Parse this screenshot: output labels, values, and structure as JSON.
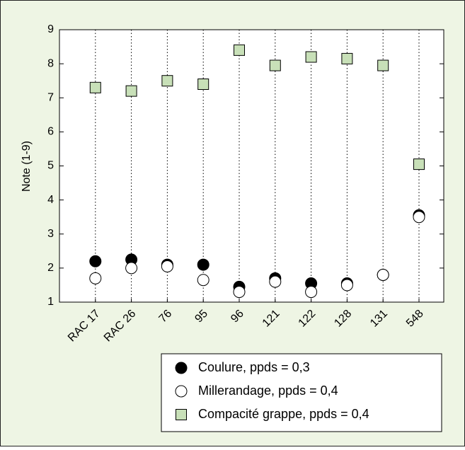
{
  "chart_data": {
    "type": "scatter",
    "y_label": "Note (1-9)",
    "categories": [
      "RAC 17",
      "RAC 26",
      "76",
      "95",
      "96",
      "121",
      "122",
      "128",
      "131",
      "548"
    ],
    "ylim": [
      1,
      9
    ],
    "yticks": [
      1,
      2,
      3,
      4,
      5,
      6,
      7,
      8,
      9
    ],
    "grid": true,
    "legend": "bottom-right",
    "series": [
      {
        "name": "Coulure, ppds = 0,3",
        "color": "#000000",
        "marker": "circle",
        "values": [
          2.2,
          2.25,
          2.1,
          2.1,
          1.45,
          1.7,
          1.55,
          1.55,
          1.8,
          3.55
        ]
      },
      {
        "name": "Millerandage, ppds = 0,4",
        "color": "#ffffff",
        "marker": "circle",
        "values": [
          1.7,
          2.0,
          2.05,
          1.65,
          1.3,
          1.6,
          1.3,
          1.5,
          1.8,
          3.5
        ]
      },
      {
        "name": "Compacité grappe, ppds = 0,4",
        "color": "#c8e0b8",
        "marker": "square",
        "values": [
          7.3,
          7.2,
          7.5,
          7.4,
          8.4,
          7.95,
          8.2,
          8.15,
          7.95,
          5.05
        ]
      }
    ]
  }
}
